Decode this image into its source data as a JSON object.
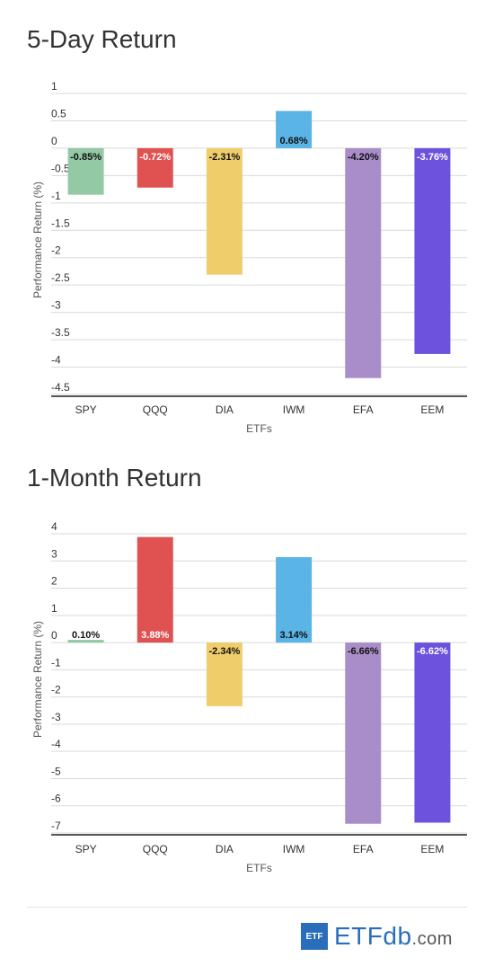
{
  "chart_data": [
    {
      "type": "bar",
      "title": "5-Day Return",
      "xlabel": "ETFs",
      "ylabel": "Performance Return (%)",
      "categories": [
        "SPY",
        "QQQ",
        "DIA",
        "IWM",
        "EFA",
        "EEM"
      ],
      "values": [
        -0.85,
        -0.72,
        -2.31,
        0.68,
        -4.2,
        -3.76
      ],
      "data_labels": [
        "-0.85%",
        "-0.72%",
        "-2.31%",
        "0.68%",
        "-4.20%",
        "-3.76%"
      ],
      "colors": [
        "#93c9a4",
        "#e05252",
        "#f0cd6b",
        "#5ab4e6",
        "#a88dc9",
        "#6c52dd"
      ],
      "label_colors": [
        "#111111",
        "#ffffff",
        "#111111",
        "#111111",
        "#111111",
        "#ffffff"
      ],
      "yticks": [
        1,
        0.5,
        0,
        -0.5,
        -1,
        -1.5,
        -2,
        -2.5,
        -3,
        -3.5,
        -4,
        -4.5
      ],
      "ylim": [
        -4.5,
        1
      ],
      "grid": true
    },
    {
      "type": "bar",
      "title": "1-Month Return",
      "xlabel": "ETFs",
      "ylabel": "Performance Return (%)",
      "categories": [
        "SPY",
        "QQQ",
        "DIA",
        "IWM",
        "EFA",
        "EEM"
      ],
      "values": [
        0.1,
        3.88,
        -2.34,
        3.14,
        -6.66,
        -6.62
      ],
      "data_labels": [
        "0.10%",
        "3.88%",
        "-2.34%",
        "3.14%",
        "-6.66%",
        "-6.62%"
      ],
      "colors": [
        "#93c9a4",
        "#e05252",
        "#f0cd6b",
        "#5ab4e6",
        "#a88dc9",
        "#6c52dd"
      ],
      "label_colors": [
        "#111111",
        "#ffffff",
        "#111111",
        "#111111",
        "#111111",
        "#ffffff"
      ],
      "yticks": [
        4,
        3,
        2,
        1,
        0,
        -1,
        -2,
        -3,
        -4,
        -5,
        -6,
        -7
      ],
      "ylim": [
        -7,
        4
      ],
      "grid": true
    }
  ],
  "logo": {
    "box_text": "ETF",
    "main_text": "ETFdb",
    "suffix_text": ".com",
    "color": "#2a6ebb"
  }
}
